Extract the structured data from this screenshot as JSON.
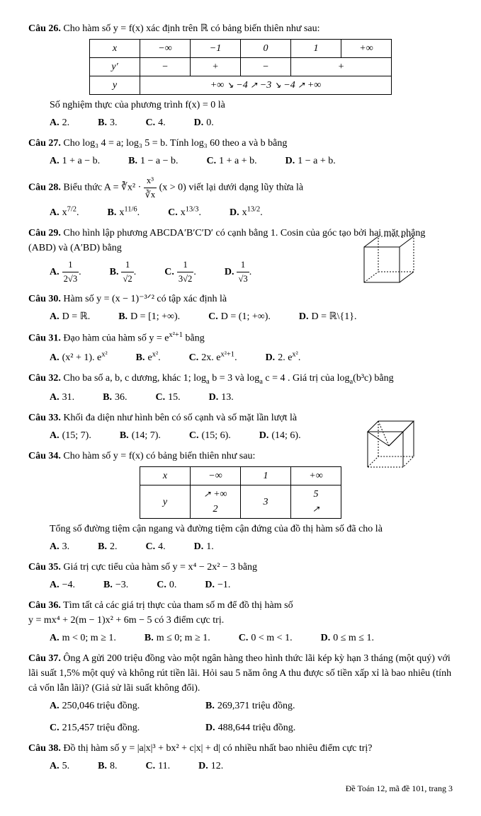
{
  "q26": {
    "label": "Câu 26.",
    "text": "Cho hàm số y = f(x) xác định trên ℝ có bảng biến thiên như sau:",
    "table": {
      "x_row": [
        "x",
        "−∞",
        "−1",
        "0",
        "1",
        "+∞"
      ],
      "yp_row": [
        "y′",
        "−",
        "+",
        "−",
        "+"
      ],
      "y_start": "+∞",
      "y_min1": "−4",
      "y_mid": "−3",
      "y_min2": "−4",
      "y_end": "+∞"
    },
    "sub": "Số nghiệm thực của phương trình f(x) = 0 là",
    "opts": [
      "2.",
      "3.",
      "4.",
      "0."
    ]
  },
  "q27": {
    "label": "Câu 27.",
    "text": "Cho log₃ 4 = a; log₃ 5 = b. Tính log₃ 60 theo a và b bằng",
    "opts": [
      "1 + a − b.",
      "1 − a − b.",
      "1 + a + b.",
      "1 − a + b."
    ]
  },
  "q28": {
    "label": "Câu 28.",
    "text_pre": "Biểu thức A = ",
    "text_expr_cbrt": "∛x²",
    "text_mid": " · ",
    "frac_num": "x³",
    "frac_den": "∛x",
    "text_suf": " (x > 0) viết lại dưới dạng lũy thừa là",
    "opts_html": [
      "x<span class='sup'>7/2</span>.",
      "x<span class='sup'>11/6</span>.",
      "x<span class='sup'>13/3</span>.",
      "x<span class='sup'>13/2</span>."
    ]
  },
  "q29": {
    "label": "Câu 29.",
    "text": "Cho hình lập phương ABCDA′B′C′D′ có cạnh bằng 1. Cosin của góc tạo bởi hai mặt phẳng (ABD) và (A′BD) bằng",
    "opts_html": [
      "<span class='frac'><span class='num'>1</span><span class='den'>2√3</span></span>.",
      "<span class='frac'><span class='num'>1</span><span class='den'>√2</span></span>.",
      "<span class='frac'><span class='num'>1</span><span class='den'>3√2</span></span>.",
      "<span class='frac'><span class='num'>1</span><span class='den'>√3</span></span>."
    ]
  },
  "q30": {
    "label": "Câu 30.",
    "text": "Hàm số y = (x − 1)⁻³ᐟ² có tập xác định là",
    "opts": [
      "D = ℝ.",
      "D = [1; +∞).",
      "D = (1; +∞).",
      "D = ℝ\\{1}."
    ]
  },
  "q31": {
    "label": "Câu 31.",
    "text_pre": "Đạo hàm của hàm số y = e",
    "text_exp": "x²+1",
    "text_suf": " bằng",
    "opts_html": [
      "(x² + 1). e<span class='sup'>x²</span>",
      "e<span class='sup'>x²</span>.",
      "2x. e<span class='sup'>x²+1</span>.",
      "2. e<span class='sup'>x²</span>."
    ]
  },
  "q32": {
    "label": "Câu 32.",
    "text_html": "Cho ba số a, b, c dương, khác 1; log<span class='sub'>a</span> b = 3 và log<span class='sub'>a</span> c = 4 . Giá trị của log<span class='sub'>a</span>(b³c) bằng",
    "opts": [
      "31.",
      "36.",
      "15.",
      "13."
    ]
  },
  "q33": {
    "label": "Câu 33.",
    "text": "Khối đa diện như hình bên có số cạnh và số mặt lần lượt là",
    "opts": [
      "(15; 7).",
      "(14; 7).",
      "(15; 6).",
      "(14; 6)."
    ]
  },
  "q34": {
    "label": "Câu 34.",
    "text": "Cho hàm số y = f(x) có bảng biến thiên như sau:",
    "table": {
      "x_row": [
        "x",
        "−∞",
        "1",
        "+∞"
      ],
      "y_row_start": "2",
      "y_row_mid1": "+∞",
      "y_row_mid2": "3",
      "y_row_end": "5"
    },
    "sub": "Tổng số đường tiệm cận ngang và đường tiệm cận đứng của đồ thị hàm số đã cho là",
    "opts": [
      "3.",
      "2.",
      "4.",
      "1."
    ]
  },
  "q35": {
    "label": "Câu 35.",
    "text": "Giá trị cực tiểu của hàm số y = x⁴ − 2x² − 3 bằng",
    "opts": [
      "−4.",
      "−3.",
      "0.",
      "−1."
    ]
  },
  "q36": {
    "label": "Câu 36.",
    "text": "Tìm tất cả các giá trị thực của tham số m để đồ thị hàm số",
    "text2": "y = mx⁴ + 2(m − 1)x² + 6m − 5 có 3 điểm cực trị.",
    "opts": [
      "m < 0; m ≥ 1.",
      "m ≤ 0; m ≥ 1.",
      "0 < m < 1.",
      "0 ≤ m ≤ 1."
    ]
  },
  "q37": {
    "label": "Câu 37.",
    "text": "Ông A gửi 200 triệu đồng vào một ngân hàng theo hình thức lãi kép kỳ hạn 3 tháng (một quý) với lãi suất 1,5% một quý và không rút tiền lãi. Hỏi sau 5 năm ông A thu được số tiền xấp xỉ là bao nhiêu (tính cả vốn lẫn lãi)? (Giả sử lãi suất không đổi).",
    "opts": [
      "250,046 triệu đồng.",
      "269,371 triệu đồng.",
      "215,457 triệu đồng.",
      "488,644 triệu đồng."
    ]
  },
  "q38": {
    "label": "Câu 38.",
    "text": "Đồ thị hàm số y = |a|x|³ + bx² + c|x| + d| có nhiều nhất bao nhiêu điểm cực trị?",
    "opts": [
      "5.",
      "8.",
      "11.",
      "12."
    ]
  },
  "footer": "Đề Toán 12, mã đề 101, trang 3",
  "letters": [
    "A.",
    "B.",
    "C.",
    "D."
  ]
}
